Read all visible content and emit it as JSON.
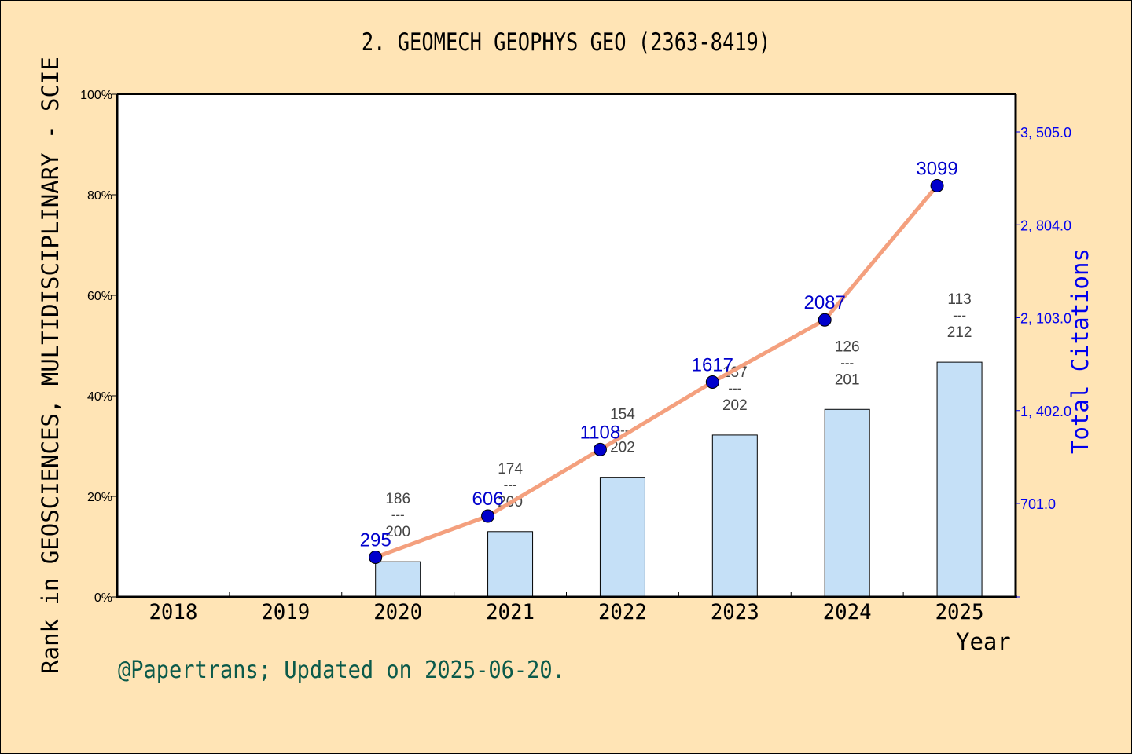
{
  "chart_data": {
    "type": "bar+line",
    "title": "2. GEOMECH GEOPHYS GEO (2363-8419)",
    "xlabel": "Year",
    "ylabel_left": "Rank in GEOSCIENCES, MULTIDISCIPLINARY - SCIE",
    "ylabel_right": "Total Citations",
    "categories": [
      "2018",
      "2019",
      "2020",
      "2021",
      "2022",
      "2023",
      "2024",
      "2025"
    ],
    "left_axis": {
      "ticks": [
        "0%",
        "20%",
        "40%",
        "60%",
        "80%",
        "100%"
      ],
      "ylim": [
        0,
        100
      ]
    },
    "right_axis": {
      "ticks": [
        "701.0",
        "1, 402.0",
        "2, 103.0",
        "2, 804.0",
        "3, 505.0"
      ],
      "tick_values": [
        701,
        1402,
        2103,
        2804,
        3505
      ]
    },
    "series": [
      {
        "name": "Rank percentile (bar)",
        "type": "bar",
        "color": "#C5E0F7",
        "values": [
          null,
          null,
          7.0,
          13.0,
          23.8,
          32.2,
          37.3,
          46.7
        ],
        "rank_labels": [
          null,
          null,
          {
            "rank": "186",
            "total": "200"
          },
          {
            "rank": "174",
            "total": "200"
          },
          {
            "rank": "154",
            "total": "202"
          },
          {
            "rank": "137",
            "total": "202"
          },
          {
            "rank": "126",
            "total": "201"
          },
          {
            "rank": "113",
            "total": "212"
          }
        ]
      },
      {
        "name": "Total Citations (line)",
        "type": "line",
        "color": "#F4A07E",
        "marker_color": "#0000CC",
        "values": [
          null,
          null,
          295,
          606,
          1108,
          1617,
          2087,
          3099
        ]
      }
    ],
    "grid": false,
    "legend": null
  },
  "footer": "@Papertrans; Updated on 2025-06-20."
}
